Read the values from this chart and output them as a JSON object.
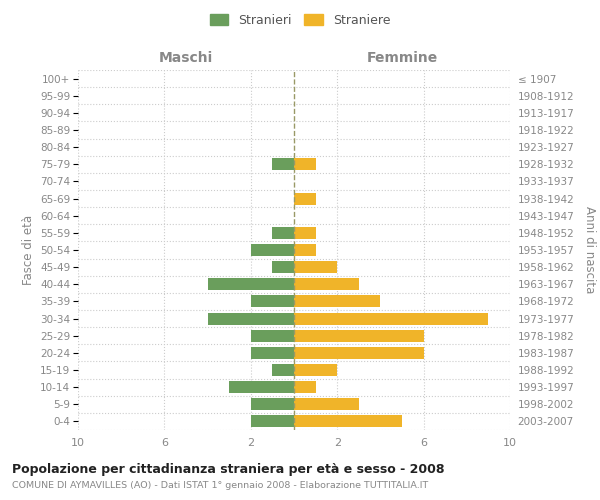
{
  "age_groups": [
    "0-4",
    "5-9",
    "10-14",
    "15-19",
    "20-24",
    "25-29",
    "30-34",
    "35-39",
    "40-44",
    "45-49",
    "50-54",
    "55-59",
    "60-64",
    "65-69",
    "70-74",
    "75-79",
    "80-84",
    "85-89",
    "90-94",
    "95-99",
    "100+"
  ],
  "birth_years": [
    "2003-2007",
    "1998-2002",
    "1993-1997",
    "1988-1992",
    "1983-1987",
    "1978-1982",
    "1973-1977",
    "1968-1972",
    "1963-1967",
    "1958-1962",
    "1953-1957",
    "1948-1952",
    "1943-1947",
    "1938-1942",
    "1933-1937",
    "1928-1932",
    "1923-1927",
    "1918-1922",
    "1913-1917",
    "1908-1912",
    "≤ 1907"
  ],
  "maschi": [
    2,
    2,
    3,
    1,
    2,
    2,
    4,
    2,
    4,
    1,
    2,
    1,
    0,
    0,
    0,
    1,
    0,
    0,
    0,
    0,
    0
  ],
  "femmine": [
    5,
    3,
    1,
    2,
    6,
    6,
    9,
    4,
    3,
    2,
    1,
    1,
    0,
    1,
    0,
    1,
    0,
    0,
    0,
    0,
    0
  ],
  "maschi_color": "#6a9e5c",
  "femmine_color": "#f0b429",
  "center_line_color": "#999966",
  "background_color": "#ffffff",
  "grid_color": "#cccccc",
  "title": "Popolazione per cittadinanza straniera per età e sesso - 2008",
  "subtitle": "COMUNE DI AYMAVILLES (AO) - Dati ISTAT 1° gennaio 2008 - Elaborazione TUTTITALIA.IT",
  "xlabel_left": "Maschi",
  "xlabel_right": "Femmine",
  "ylabel_left": "Fasce di età",
  "ylabel_right": "Anni di nascita",
  "legend_maschi": "Stranieri",
  "legend_femmine": "Straniere",
  "xlim": 10
}
